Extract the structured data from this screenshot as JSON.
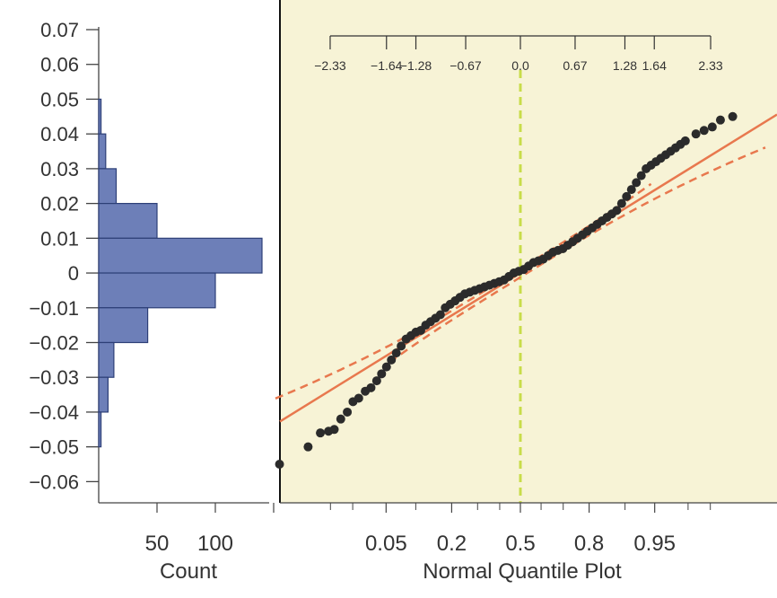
{
  "chart_data": {
    "type": "composite",
    "y_axis": {
      "ticks": [
        "0.07",
        "0.06",
        "0.05",
        "0.04",
        "0.03",
        "0.02",
        "0.01",
        "0",
        "−0.01",
        "−0.02",
        "−0.03",
        "−0.04",
        "−0.05",
        "−0.06"
      ],
      "ylim": [
        -0.063,
        0.07
      ]
    },
    "histogram": {
      "type": "bar",
      "orientation": "horizontal",
      "xlabel": "Count",
      "count_ticks": [
        "50",
        "100"
      ],
      "bins": [
        {
          "from": 0.04,
          "to": 0.05,
          "count": 2
        },
        {
          "from": 0.03,
          "to": 0.04,
          "count": 6
        },
        {
          "from": 0.02,
          "to": 0.03,
          "count": 15
        },
        {
          "from": 0.01,
          "to": 0.02,
          "count": 50
        },
        {
          "from": 0.0,
          "to": 0.01,
          "count": 140
        },
        {
          "from": -0.01,
          "to": 0.0,
          "count": 100
        },
        {
          "from": -0.02,
          "to": -0.01,
          "count": 42
        },
        {
          "from": -0.03,
          "to": -0.02,
          "count": 13
        },
        {
          "from": -0.04,
          "to": -0.03,
          "count": 8
        },
        {
          "from": -0.05,
          "to": -0.04,
          "count": 2
        }
      ],
      "bar_color": "#6d7fb8"
    },
    "quantile_plot": {
      "type": "scatter",
      "xlabel": "Normal Quantile Plot",
      "bottom_ticks": [
        "0.05",
        "0.2",
        "0.5",
        "0.8",
        "0.95"
      ],
      "bottom_tick_probs": [
        0.05,
        0.2,
        0.5,
        0.8,
        0.95
      ],
      "top_ticks": [
        "−2.33",
        "−1.64",
        "−1.28",
        "−0.67",
        "0.0",
        "0.67",
        "1.28",
        "1.64",
        "2.33"
      ],
      "top_tick_values": [
        -2.33,
        -1.64,
        -1.28,
        -0.67,
        0.0,
        0.67,
        1.28,
        1.64,
        2.33
      ],
      "background": "#f7f3d6",
      "points_color": "#2b2b2b",
      "fit_line_color": "#e8784e",
      "median_line_color": "#c8dc4a",
      "points": [
        [
          -2.95,
          -0.055
        ],
        [
          -2.6,
          -0.05
        ],
        [
          -2.45,
          -0.046
        ],
        [
          -2.35,
          -0.0455
        ],
        [
          -2.28,
          -0.045
        ],
        [
          -2.2,
          -0.042
        ],
        [
          -2.12,
          -0.04
        ],
        [
          -2.05,
          -0.037
        ],
        [
          -1.98,
          -0.036
        ],
        [
          -1.9,
          -0.034
        ],
        [
          -1.83,
          -0.033
        ],
        [
          -1.76,
          -0.031
        ],
        [
          -1.7,
          -0.029
        ],
        [
          -1.64,
          -0.027
        ],
        [
          -1.58,
          -0.025
        ],
        [
          -1.52,
          -0.023
        ],
        [
          -1.46,
          -0.021
        ],
        [
          -1.4,
          -0.019
        ],
        [
          -1.34,
          -0.018
        ],
        [
          -1.28,
          -0.017
        ],
        [
          -1.22,
          -0.0165
        ],
        [
          -1.16,
          -0.015
        ],
        [
          -1.1,
          -0.014
        ],
        [
          -1.04,
          -0.013
        ],
        [
          -0.98,
          -0.012
        ],
        [
          -0.92,
          -0.01
        ],
        [
          -0.86,
          -0.009
        ],
        [
          -0.8,
          -0.008
        ],
        [
          -0.74,
          -0.007
        ],
        [
          -0.68,
          -0.006
        ],
        [
          -0.62,
          -0.0055
        ],
        [
          -0.56,
          -0.005
        ],
        [
          -0.5,
          -0.0045
        ],
        [
          -0.44,
          -0.004
        ],
        [
          -0.38,
          -0.0035
        ],
        [
          -0.32,
          -0.003
        ],
        [
          -0.26,
          -0.0025
        ],
        [
          -0.2,
          -0.002
        ],
        [
          -0.14,
          -0.001
        ],
        [
          -0.08,
          0.0
        ],
        [
          -0.02,
          0.0005
        ],
        [
          0.04,
          0.001
        ],
        [
          0.1,
          0.002
        ],
        [
          0.16,
          0.003
        ],
        [
          0.22,
          0.0035
        ],
        [
          0.28,
          0.004
        ],
        [
          0.34,
          0.005
        ],
        [
          0.4,
          0.006
        ],
        [
          0.46,
          0.0065
        ],
        [
          0.52,
          0.007
        ],
        [
          0.58,
          0.008
        ],
        [
          0.64,
          0.009
        ],
        [
          0.7,
          0.01
        ],
        [
          0.76,
          0.011
        ],
        [
          0.82,
          0.012
        ],
        [
          0.88,
          0.013
        ],
        [
          0.94,
          0.014
        ],
        [
          1.0,
          0.015
        ],
        [
          1.06,
          0.016
        ],
        [
          1.12,
          0.017
        ],
        [
          1.18,
          0.018
        ],
        [
          1.24,
          0.02
        ],
        [
          1.3,
          0.022
        ],
        [
          1.36,
          0.024
        ],
        [
          1.42,
          0.026
        ],
        [
          1.48,
          0.028
        ],
        [
          1.54,
          0.03
        ],
        [
          1.6,
          0.031
        ],
        [
          1.66,
          0.032
        ],
        [
          1.72,
          0.033
        ],
        [
          1.78,
          0.034
        ],
        [
          1.84,
          0.035
        ],
        [
          1.9,
          0.036
        ],
        [
          1.96,
          0.037
        ],
        [
          2.02,
          0.038
        ],
        [
          2.15,
          0.04
        ],
        [
          2.25,
          0.041
        ],
        [
          2.35,
          0.042
        ],
        [
          2.45,
          0.044
        ],
        [
          2.6,
          0.045
        ]
      ],
      "fit_line": {
        "intercept": 0.0,
        "slope": 0.0145
      }
    }
  }
}
